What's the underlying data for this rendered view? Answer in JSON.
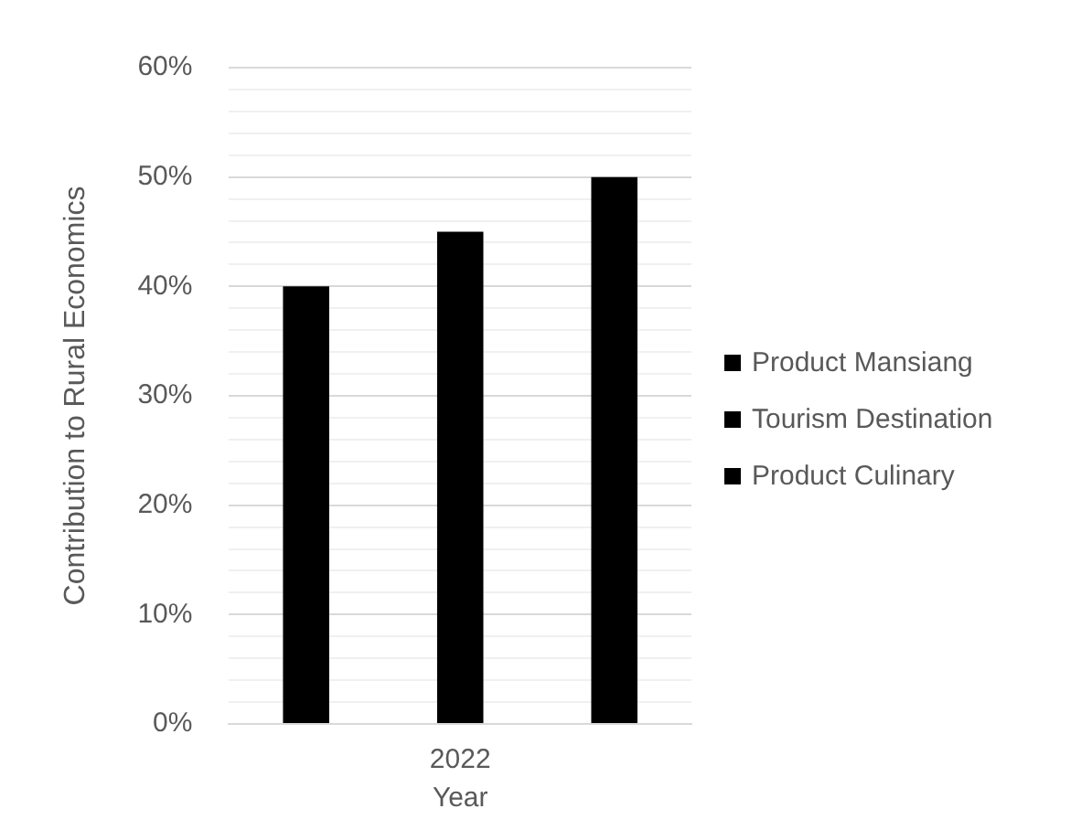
{
  "chart_data": {
    "type": "bar",
    "xlabel": "Year",
    "ylabel": "Contribution to Rural Economics",
    "categories": [
      null,
      "2022",
      null
    ],
    "series": [
      {
        "name": "Product Mansiang",
        "color": "#000000",
        "values": [
          40,
          null,
          null
        ]
      },
      {
        "name": "Tourism Destination",
        "color": "#000000",
        "values": [
          null,
          45,
          null
        ]
      },
      {
        "name": "Product Culinary",
        "color": "#000000",
        "values": [
          null,
          null,
          50
        ]
      }
    ],
    "ylim": [
      0,
      60
    ],
    "yticks": [
      {
        "value": 0,
        "label": "0%"
      },
      {
        "value": 2,
        "label": null
      },
      {
        "value": 4,
        "label": null
      },
      {
        "value": 6,
        "label": null
      },
      {
        "value": 8,
        "label": null
      },
      {
        "value": 10,
        "label": "10%"
      },
      {
        "value": 12,
        "label": null
      },
      {
        "value": 14,
        "label": null
      },
      {
        "value": 16,
        "label": null
      },
      {
        "value": 18,
        "label": null
      },
      {
        "value": 20,
        "label": "20%"
      },
      {
        "value": 22,
        "label": null
      },
      {
        "value": 24,
        "label": null
      },
      {
        "value": 26,
        "label": null
      },
      {
        "value": 28,
        "label": null
      },
      {
        "value": 30,
        "label": "30%"
      },
      {
        "value": 32,
        "label": null
      },
      {
        "value": 34,
        "label": null
      },
      {
        "value": 36,
        "label": null
      },
      {
        "value": 38,
        "label": null
      },
      {
        "value": 40,
        "label": "40%"
      },
      {
        "value": 42,
        "label": null
      },
      {
        "value": 44,
        "label": null
      },
      {
        "value": 46,
        "label": null
      },
      {
        "value": 48,
        "label": null
      },
      {
        "value": 50,
        "label": "50%"
      },
      {
        "value": 52,
        "label": null
      },
      {
        "value": 54,
        "label": null
      },
      {
        "value": 56,
        "label": null
      },
      {
        "value": 58,
        "label": null
      },
      {
        "value": 60,
        "label": "60%"
      }
    ],
    "grid": true,
    "legend": "right"
  }
}
